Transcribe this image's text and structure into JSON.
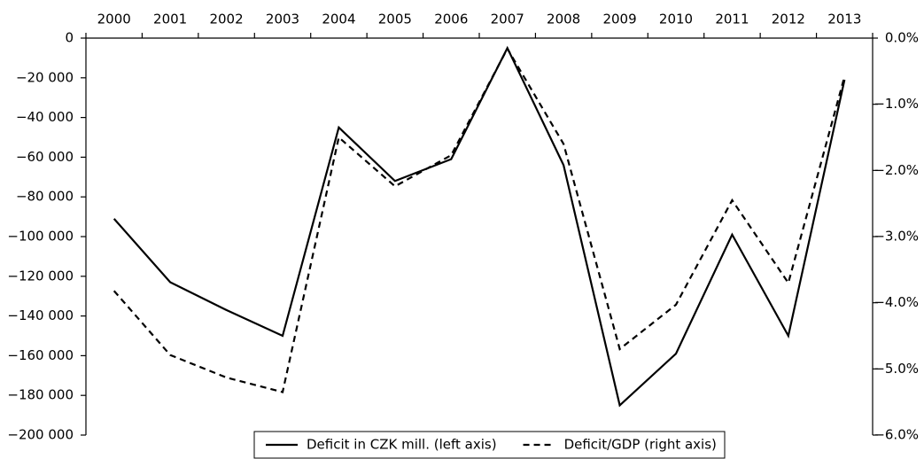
{
  "chart_data": {
    "type": "line",
    "categories": [
      "2000",
      "2001",
      "2002",
      "2003",
      "2004",
      "2005",
      "2006",
      "2007",
      "2008",
      "2009",
      "2010",
      "2011",
      "2012",
      "2013"
    ],
    "series": [
      {
        "name": "Deficit in CZK mill. (left axis)",
        "color": "#000000",
        "dashed": false,
        "values": [
          -91000,
          -123000,
          -137000,
          -150000,
          -45000,
          -72000,
          -61000,
          -5000,
          -64000,
          -185000,
          -159000,
          -99000,
          -150000,
          -21000
        ]
      },
      {
        "name": "Deficit/GDP (right axis)",
        "color": "#000000",
        "dashed": true,
        "axis": "y2",
        "values": [
          -3.82,
          -4.79,
          -5.13,
          -5.35,
          -1.5,
          -2.24,
          -1.77,
          -0.16,
          -1.6,
          -4.7,
          -4.03,
          -2.45,
          -3.7,
          -0.58
        ]
      }
    ],
    "ylim": [
      -200000,
      0
    ],
    "yticks": [
      {
        "value": 0,
        "label": "0"
      },
      {
        "value": -20000,
        "label": "−20 000"
      },
      {
        "value": -40000,
        "label": "−40 000"
      },
      {
        "value": -60000,
        "label": "−60 000"
      },
      {
        "value": -80000,
        "label": "−80 000"
      },
      {
        "value": -100000,
        "label": "−100 000"
      },
      {
        "value": -120000,
        "label": "−120 000"
      },
      {
        "value": -140000,
        "label": "−140 000"
      },
      {
        "value": -160000,
        "label": "−160 000"
      },
      {
        "value": -180000,
        "label": "−180 000"
      },
      {
        "value": -200000,
        "label": "−200 000"
      }
    ],
    "y2lim": [
      -6,
      0
    ],
    "y2ticks": [
      {
        "value": 0,
        "label": "0.0%"
      },
      {
        "value": -1,
        "label": "−1.0%"
      },
      {
        "value": -2,
        "label": "−2.0%"
      },
      {
        "value": -3,
        "label": "−3.0%"
      },
      {
        "value": -4,
        "label": "−4.0%"
      },
      {
        "value": -5,
        "label": "−5.0%"
      },
      {
        "value": -6,
        "label": "−6.0%"
      }
    ],
    "legend": "bottom"
  }
}
